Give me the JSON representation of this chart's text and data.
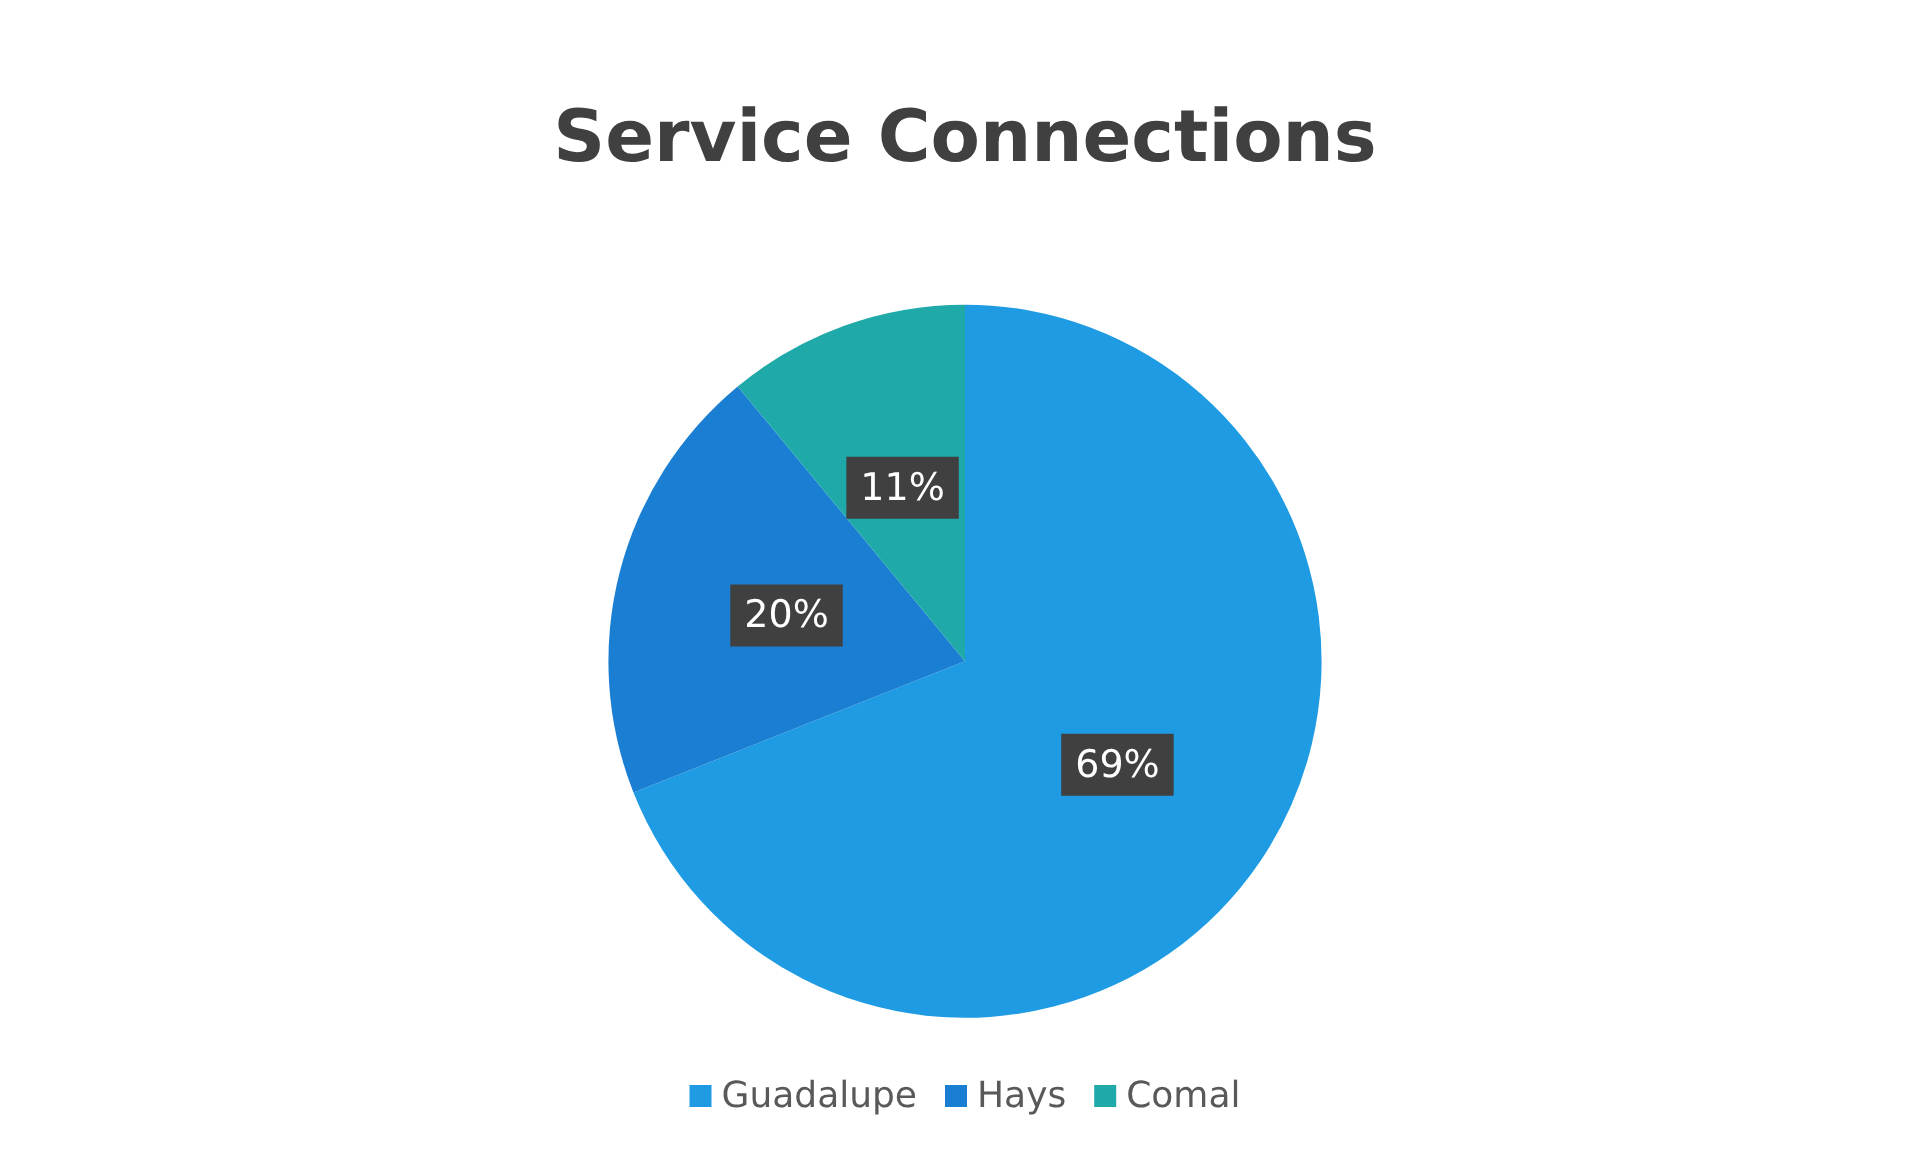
{
  "chart_data": {
    "type": "pie",
    "title": "Service Connections",
    "categories": [
      "Guadalupe",
      "Hays",
      "Comal"
    ],
    "values": [
      69,
      20,
      11
    ],
    "colors": [
      "#1e9be3",
      "#1a7ed2",
      "#1fa9a9"
    ],
    "value_labels": [
      "69%",
      "20%",
      "11%"
    ],
    "legend": "bottom"
  }
}
